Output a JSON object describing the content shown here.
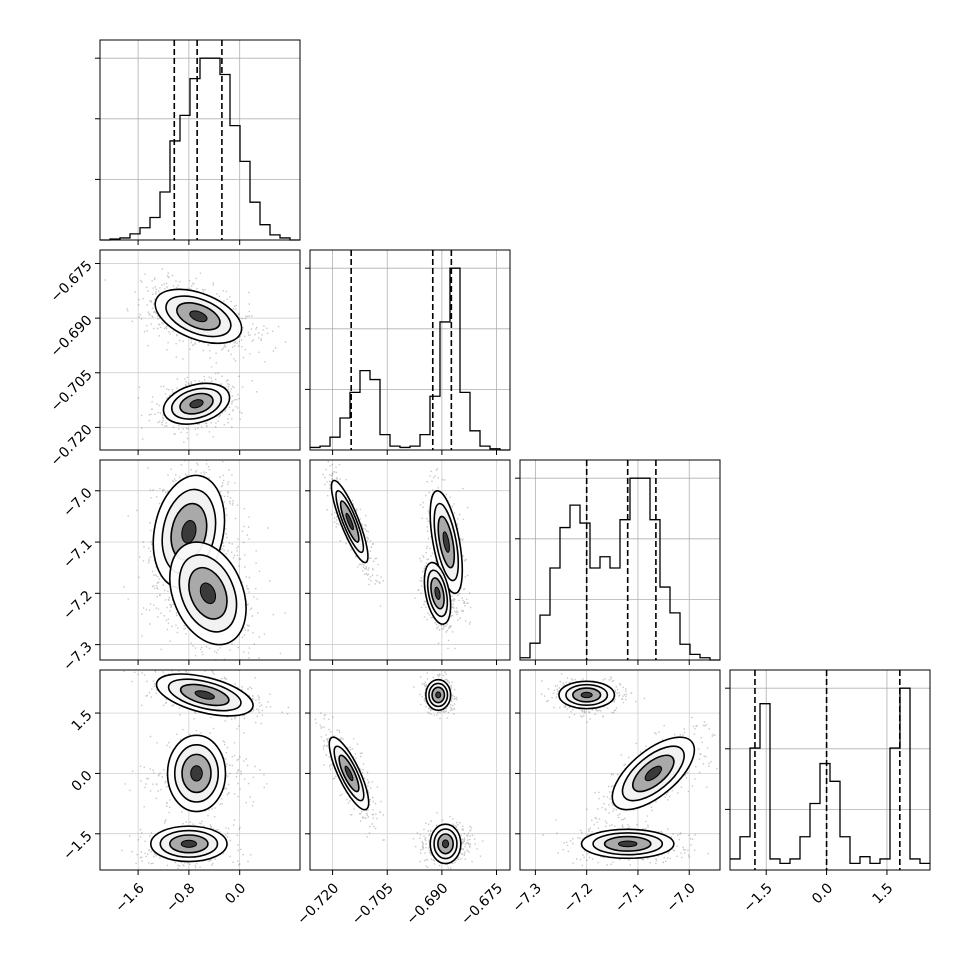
{
  "chart_data": {
    "type": "corner",
    "parameters": [
      {
        "range": [
          -2.2,
          0.95
        ],
        "ticks": [
          -1.6,
          -0.8,
          0.0
        ],
        "tick_labels": [
          "−1.6",
          "−0.8",
          "0.0"
        ],
        "quantiles": [
          -1.03,
          -0.67,
          -0.28
        ]
      },
      {
        "range": [
          -0.7262,
          -0.6713
        ],
        "ticks": [
          -0.72,
          -0.705,
          -0.69,
          -0.675
        ],
        "tick_labels": [
          "−0.720",
          "−0.705",
          "−0.690",
          "−0.675"
        ],
        "quantiles": [
          -0.7149,
          -0.6925,
          -0.6874
        ]
      },
      {
        "range": [
          -7.33,
          -6.94
        ],
        "ticks": [
          -7.3,
          -7.2,
          -7.1,
          -7.0
        ],
        "tick_labels": [
          "−7.3",
          "−7.2",
          "−7.1",
          "−7.0"
        ],
        "quantiles": [
          -7.2,
          -7.12,
          -7.065
        ]
      },
      {
        "range": [
          -2.4,
          2.57
        ],
        "ticks": [
          -1.5,
          0.0,
          1.5
        ],
        "tick_labels": [
          "−1.5",
          "0.0",
          "1.5"
        ],
        "quantiles": [
          -1.78,
          0.0,
          1.82
        ]
      }
    ],
    "histograms": [
      [
        0,
        1,
        2,
        6,
        12,
        22,
        47,
        97,
        122,
        158,
        178,
        178,
        162,
        112,
        77,
        37,
        15,
        5,
        2,
        0
      ],
      [
        2,
        3,
        10,
        25,
        45,
        62,
        55,
        12,
        3,
        2,
        3,
        12,
        42,
        100,
        142,
        45,
        15,
        3,
        1,
        0
      ],
      [
        2,
        15,
        40,
        82,
        118,
        138,
        122,
        82,
        92,
        82,
        125,
        162,
        162,
        125,
        65,
        42,
        14,
        5,
        2,
        0
      ],
      [
        5,
        15,
        55,
        75,
        5,
        3,
        5,
        15,
        30,
        48,
        40,
        15,
        3,
        6,
        3,
        5,
        55,
        82,
        5,
        3
      ]
    ],
    "modes": {
      "0_1": [
        {
          "mean": [
            -0.65,
            -0.6895
          ],
          "sd": [
            0.34,
            0.0037
          ],
          "corr": -0.45,
          "weight": 0.6
        },
        {
          "mean": [
            -0.68,
            -0.7135
          ],
          "sd": [
            0.26,
            0.0028
          ],
          "corr": 0.3,
          "weight": 0.4
        }
      ],
      "0_2": [
        {
          "mean": [
            -0.8,
            -7.08
          ],
          "sd": [
            0.28,
            0.055
          ],
          "corr": 0.2,
          "weight": 0.55
        },
        {
          "mean": [
            -0.5,
            -7.2
          ],
          "sd": [
            0.3,
            0.05
          ],
          "corr": -0.3,
          "weight": 0.45
        }
      ],
      "0_3": [
        {
          "mean": [
            -0.55,
            1.95
          ],
          "sd": [
            0.38,
            0.26
          ],
          "corr": -0.5,
          "weight": 0.37
        },
        {
          "mean": [
            -0.68,
            0.0
          ],
          "sd": [
            0.3,
            0.36
          ],
          "corr": 0.0,
          "weight": 0.3
        },
        {
          "mean": [
            -0.8,
            -1.75
          ],
          "sd": [
            0.3,
            0.22
          ],
          "corr": 0.0,
          "weight": 0.33
        }
      ],
      "1_2": [
        {
          "mean": [
            -0.7153,
            -7.06
          ],
          "sd": [
            0.0025,
            0.04
          ],
          "corr": -0.85,
          "weight": 0.35
        },
        {
          "mean": [
            -0.6888,
            -7.1
          ],
          "sd": [
            0.0022,
            0.05
          ],
          "corr": -0.55,
          "weight": 0.3
        },
        {
          "mean": [
            -0.6912,
            -7.2
          ],
          "sd": [
            0.0018,
            0.03
          ],
          "corr": -0.4,
          "weight": 0.35
        }
      ],
      "1_3": [
        {
          "mean": [
            -0.7155,
            0.0
          ],
          "sd": [
            0.0027,
            0.45
          ],
          "corr": -0.8,
          "weight": 0.33
        },
        {
          "mean": [
            -0.691,
            1.95
          ],
          "sd": [
            0.0017,
            0.19
          ],
          "corr": 0.0,
          "weight": 0.33
        },
        {
          "mean": [
            -0.689,
            -1.75
          ],
          "sd": [
            0.0027,
            0.19
          ],
          "corr": 0.0,
          "weight": 0.34
        }
      ],
      "2_3": [
        {
          "mean": [
            -7.2,
            1.95
          ],
          "sd": [
            0.027,
            0.17
          ],
          "corr": 0.0,
          "weight": 0.33
        },
        {
          "mean": [
            -7.07,
            0.0
          ],
          "sd": [
            0.04,
            0.45
          ],
          "corr": 0.65,
          "weight": 0.33
        },
        {
          "mean": [
            -7.12,
            -1.75
          ],
          "sd": [
            0.045,
            0.18
          ],
          "corr": 0.0,
          "weight": 0.34
        }
      ]
    },
    "contour_levels": [
      0.15,
      0.45,
      0.75
    ],
    "grid": true,
    "title": "",
    "xlabel": "",
    "ylabel": ""
  }
}
